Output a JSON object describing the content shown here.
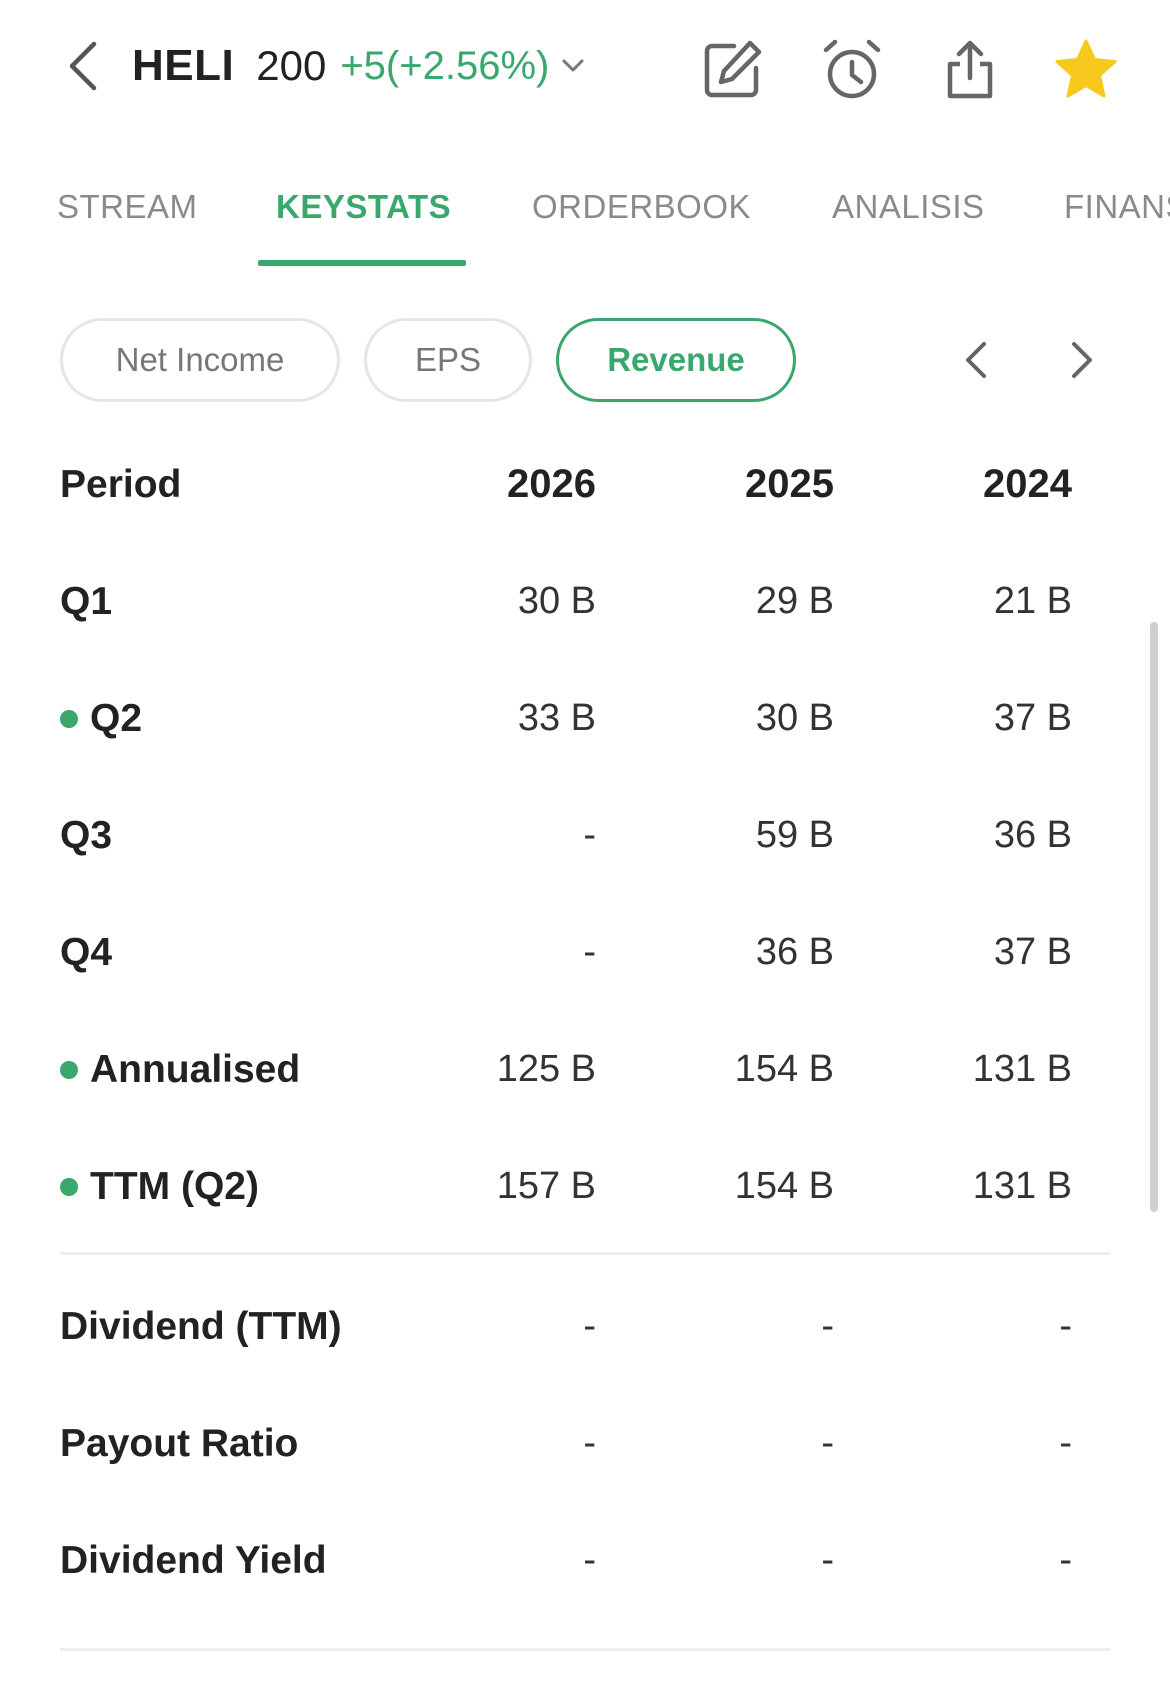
{
  "header": {
    "ticker": "HELI",
    "price": "200",
    "change": "+5(+2.56%)",
    "icons": [
      "back-icon",
      "chevron-down-icon",
      "edit-icon",
      "alarm-icon",
      "share-icon",
      "star-icon"
    ]
  },
  "tabs": [
    {
      "label": "STREAM",
      "active": false
    },
    {
      "label": "KEYSTATS",
      "active": true
    },
    {
      "label": "ORDERBOOK",
      "active": false
    },
    {
      "label": "ANALISIS",
      "active": false
    },
    {
      "label": "FINANS",
      "active": false
    }
  ],
  "chips": [
    {
      "label": "Net Income",
      "active": false
    },
    {
      "label": "EPS",
      "active": false
    },
    {
      "label": "Revenue",
      "active": true
    }
  ],
  "table": {
    "header": {
      "label": "Period",
      "cols": [
        "2026",
        "2025",
        "2024"
      ]
    },
    "rows": [
      {
        "label": "Q1",
        "values": [
          "30 B",
          "29 B",
          "21 B"
        ],
        "dot": false
      },
      {
        "label": "Q2",
        "values": [
          "33 B",
          "30 B",
          "37 B"
        ],
        "dot": true
      },
      {
        "label": "Q3",
        "values": [
          "-",
          "59 B",
          "36 B"
        ],
        "dot": false
      },
      {
        "label": "Q4",
        "values": [
          "-",
          "36 B",
          "37 B"
        ],
        "dot": false
      },
      {
        "label": "Annualised",
        "values": [
          "125 B",
          "154 B",
          "131 B"
        ],
        "dot": true
      },
      {
        "label": "TTM (Q2)",
        "values": [
          "157 B",
          "154 B",
          "131 B"
        ],
        "dot": true
      }
    ]
  },
  "dividend_table": {
    "rows": [
      {
        "label": "Dividend (TTM)",
        "values": [
          "-",
          "-",
          "-"
        ]
      },
      {
        "label": "Payout Ratio",
        "values": [
          "-",
          "-",
          "-"
        ]
      },
      {
        "label": "Dividend Yield",
        "values": [
          "-",
          "-",
          "-"
        ]
      }
    ]
  },
  "colors": {
    "accent": "#3aa76d",
    "star": "#f7c81e",
    "muted": "#8a8a8a",
    "text": "#222222"
  }
}
